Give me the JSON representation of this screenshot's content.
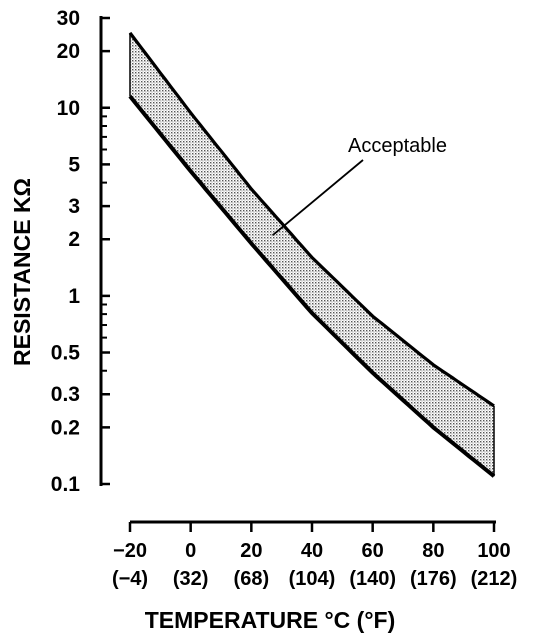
{
  "chart_data": {
    "type": "area",
    "title": "",
    "xlabel": "TEMPERATURE °C (°F)",
    "ylabel": "RESISTANCE KΩ",
    "y_scale": "log",
    "ylim": [
      0.1,
      30
    ],
    "xlim": [
      -20,
      100
    ],
    "grid": false,
    "y_ticks": [
      {
        "value": 30,
        "label": "30"
      },
      {
        "value": 20,
        "label": "20"
      },
      {
        "value": 10,
        "label": "10"
      },
      {
        "value": 5,
        "label": "5"
      },
      {
        "value": 3,
        "label": "3"
      },
      {
        "value": 2,
        "label": "2"
      },
      {
        "value": 1,
        "label": "1"
      },
      {
        "value": 0.5,
        "label": "0.5"
      },
      {
        "value": 0.3,
        "label": "0.3"
      },
      {
        "value": 0.2,
        "label": "0.2"
      },
      {
        "value": 0.1,
        "label": "0.1"
      }
    ],
    "x_ticks": [
      {
        "value": -20,
        "label": "−20",
        "sublabel": "(−4)"
      },
      {
        "value": 0,
        "label": "0",
        "sublabel": "(32)"
      },
      {
        "value": 20,
        "label": "20",
        "sublabel": "(68)"
      },
      {
        "value": 40,
        "label": "40",
        "sublabel": "(104)"
      },
      {
        "value": 60,
        "label": "60",
        "sublabel": "(140)"
      },
      {
        "value": 80,
        "label": "80",
        "sublabel": "(176)"
      },
      {
        "value": 100,
        "label": "100",
        "sublabel": "(212)"
      }
    ],
    "series": [
      {
        "role": "upper",
        "x": [
          -20,
          0,
          20,
          40,
          60,
          80,
          100
        ],
        "values": [
          25,
          9.4,
          3.7,
          1.6,
          0.78,
          0.43,
          0.26
        ]
      },
      {
        "role": "lower",
        "x": [
          -20,
          0,
          20,
          40,
          60,
          80,
          100
        ],
        "values": [
          11.5,
          4.6,
          1.9,
          0.81,
          0.39,
          0.2,
          0.11
        ]
      }
    ],
    "annotations": [
      {
        "text": "Acceptable",
        "x": 27,
        "y": 2.1
      }
    ]
  }
}
